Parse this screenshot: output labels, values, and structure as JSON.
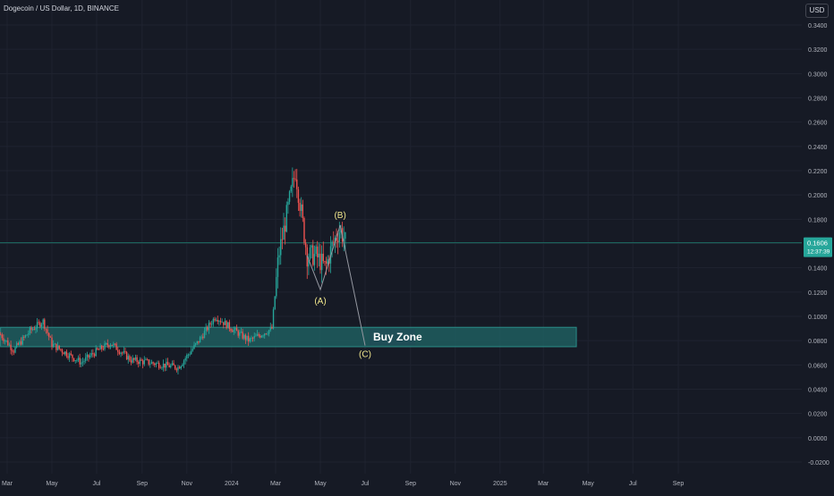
{
  "header": {
    "symbol": "Dogecoin / US Dollar, 1D, BINANCE",
    "currency": "USD"
  },
  "price_label": {
    "value": "0.1606",
    "countdown": "12:37:39"
  },
  "colors": {
    "background": "#161a25",
    "grid": "#1f2330",
    "text": "#b2b5be",
    "up": "#26a69a",
    "down": "#ef5350",
    "zone_fill": "#1e5e5f",
    "zone_border": "#2a8d88",
    "wave_label": "#f0e68c",
    "path": "#9598a1",
    "price_line": "#1d6e64"
  },
  "chart_data": {
    "type": "candlestick",
    "y_axis": {
      "ticks": [
        "0.3400",
        "0.3200",
        "0.3000",
        "0.2800",
        "0.2600",
        "0.2400",
        "0.2200",
        "0.2000",
        "0.1800",
        "0.1600",
        "0.1400",
        "0.1200",
        "0.1000",
        "0.0800",
        "0.0600",
        "0.0400",
        "0.0200",
        "0.0000",
        "-0.0200"
      ],
      "ylim": [
        -0.02,
        0.34
      ]
    },
    "x_axis": {
      "labels": [
        "Mar",
        "May",
        "Jul",
        "Sep",
        "Nov",
        "2024",
        "Mar",
        "May",
        "Jul",
        "Sep",
        "Nov",
        "2025",
        "Mar",
        "May",
        "Jul",
        "Sep"
      ],
      "start": "2023-03-01",
      "end": "2025-09-01"
    },
    "price_path": [
      [
        "2023-02-20",
        0.085
      ],
      [
        "2023-03-10",
        0.072
      ],
      [
        "2023-04-01",
        0.088
      ],
      [
        "2023-04-19",
        0.096
      ],
      [
        "2023-05-01",
        0.077
      ],
      [
        "2023-06-10",
        0.062
      ],
      [
        "2023-06-30",
        0.071
      ],
      [
        "2023-07-20",
        0.078
      ],
      [
        "2023-08-17",
        0.064
      ],
      [
        "2023-09-10",
        0.062
      ],
      [
        "2023-10-20",
        0.058
      ],
      [
        "2023-11-15",
        0.078
      ],
      [
        "2023-12-10",
        0.1
      ],
      [
        "2024-01-01",
        0.09
      ],
      [
        "2024-01-25",
        0.08
      ],
      [
        "2024-02-25",
        0.09
      ],
      [
        "2024-03-05",
        0.15
      ],
      [
        "2024-03-15",
        0.18
      ],
      [
        "2024-03-28",
        0.22
      ],
      [
        "2024-04-13",
        0.15
      ],
      [
        "2024-04-25",
        0.15
      ],
      [
        "2024-05-08",
        0.14
      ],
      [
        "2024-05-18",
        0.16
      ],
      [
        "2024-05-28",
        0.172
      ],
      [
        "2024-06-05",
        0.16
      ]
    ],
    "last_price": 0.1606,
    "annotations": {
      "buy_zone": {
        "label": "Buy Zone",
        "start": "2023-02-20",
        "end": "2025-04-15",
        "top": 0.091,
        "bottom": 0.075
      },
      "waves": [
        {
          "label": "(A)",
          "date": "2024-05-01",
          "price": 0.122
        },
        {
          "label": "(B)",
          "date": "2024-05-28",
          "price": 0.175
        },
        {
          "label": "(C)",
          "date": "2024-07-01",
          "price": 0.076
        }
      ]
    },
    "grid": true
  }
}
